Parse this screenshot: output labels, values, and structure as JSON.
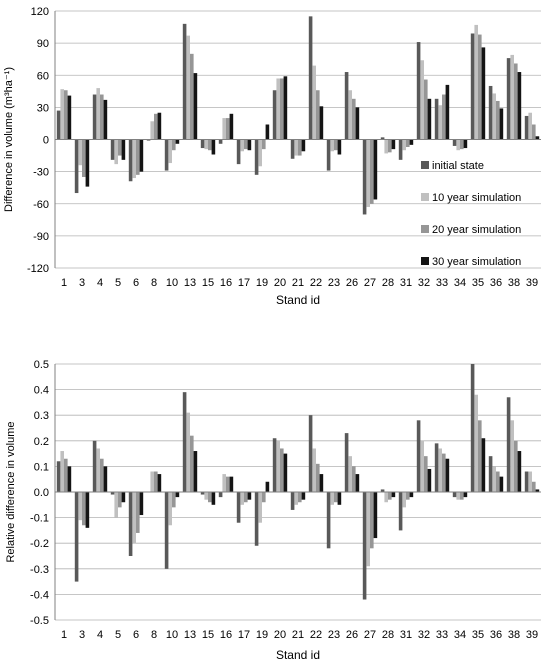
{
  "colors": {
    "series": [
      "#595959",
      "#c0c0c0",
      "#969696",
      "#141414"
    ],
    "grid": "#b3b3b3",
    "axis": "#808080"
  },
  "chart_data": [
    {
      "type": "bar",
      "xlabel": "Stand id",
      "ylabel": "Difference in volume (m³ha⁻¹)",
      "ylim": [
        -120,
        120
      ],
      "yticks": [
        -120,
        -90,
        -60,
        -30,
        0,
        30,
        60,
        90,
        120
      ],
      "grid": true,
      "legend_position": "right",
      "categories": [
        "1",
        "3",
        "4",
        "5",
        "6",
        "8",
        "10",
        "13",
        "15",
        "16",
        "17",
        "19",
        "20",
        "21",
        "22",
        "23",
        "26",
        "27",
        "28",
        "31",
        "32",
        "33",
        "34",
        "35",
        "36",
        "38",
        "39"
      ],
      "series": [
        {
          "name": "initial state",
          "values": [
            27,
            -50,
            42,
            -19,
            -39,
            -1,
            -29,
            108,
            -8,
            -4,
            -23,
            -33,
            46,
            -18,
            115,
            -29,
            63,
            -70,
            2,
            -19,
            91,
            38,
            -6,
            99,
            50,
            76,
            22
          ]
        },
        {
          "name": "10 year simulation",
          "values": [
            47,
            -24,
            48,
            -23,
            -36,
            17,
            -22,
            97,
            -9,
            20,
            -11,
            -25,
            57,
            -15,
            69,
            -11,
            46,
            -63,
            -13,
            -10,
            74,
            32,
            -10,
            107,
            43,
            79,
            25
          ]
        },
        {
          "name": "20 year simulation",
          "values": [
            46,
            -35,
            42,
            -15,
            -33,
            24,
            -10,
            80,
            -10,
            20,
            -9,
            -9,
            57,
            -15,
            46,
            -10,
            38,
            -60,
            -12,
            -7,
            56,
            42,
            -9,
            98,
            36,
            71,
            14
          ]
        },
        {
          "name": "30 year simulation",
          "values": [
            41,
            -44,
            37,
            -19,
            -30,
            25,
            -4,
            62,
            -14,
            24,
            -10,
            14,
            59,
            -11,
            31,
            -14,
            30,
            -56,
            -9,
            -5,
            38,
            51,
            -8,
            86,
            29,
            63,
            3
          ]
        }
      ]
    },
    {
      "type": "bar",
      "xlabel": "Stand id",
      "ylabel": "Relative difference in volume",
      "ylim": [
        -0.5,
        0.5
      ],
      "yticks": [
        -0.5,
        -0.4,
        -0.3,
        -0.2,
        -0.1,
        0,
        0.1,
        0.2,
        0.3,
        0.4,
        0.5
      ],
      "grid": true,
      "categories": [
        "1",
        "3",
        "4",
        "5",
        "6",
        "8",
        "10",
        "13",
        "15",
        "16",
        "17",
        "19",
        "20",
        "21",
        "22",
        "23",
        "26",
        "27",
        "28",
        "31",
        "32",
        "33",
        "34",
        "35",
        "36",
        "38",
        "39"
      ],
      "series": [
        {
          "name": "initial state",
          "values": [
            0.12,
            -0.35,
            0.2,
            -0.01,
            -0.25,
            0,
            -0.3,
            0.39,
            -0.01,
            -0.02,
            -0.12,
            -0.21,
            0.21,
            -0.07,
            0.3,
            -0.22,
            0.23,
            -0.42,
            0.01,
            -0.15,
            0.28,
            0.19,
            -0.02,
            0.5,
            0.14,
            0.37,
            0.08
          ]
        },
        {
          "name": "10 year simulation",
          "values": [
            0.16,
            -0.11,
            0.17,
            -0.1,
            -0.2,
            0.08,
            -0.13,
            0.31,
            -0.03,
            0.07,
            -0.05,
            -0.12,
            0.2,
            -0.05,
            0.17,
            -0.05,
            0.14,
            -0.29,
            -0.04,
            -0.06,
            0.2,
            0.17,
            -0.03,
            0.38,
            0.1,
            0.28,
            0.08
          ]
        },
        {
          "name": "20 year simulation",
          "values": [
            0.13,
            -0.13,
            0.13,
            -0.06,
            -0.16,
            0.08,
            -0.06,
            0.22,
            -0.04,
            0.06,
            -0.04,
            -0.04,
            0.17,
            -0.04,
            0.11,
            -0.04,
            0.1,
            -0.22,
            -0.03,
            -0.03,
            0.14,
            0.15,
            -0.03,
            0.28,
            0.08,
            0.2,
            0.04
          ]
        },
        {
          "name": "30 year simulation",
          "values": [
            0.1,
            -0.14,
            0.1,
            -0.04,
            -0.09,
            0.07,
            -0.02,
            0.16,
            -0.05,
            0.06,
            -0.03,
            0.04,
            0.15,
            -0.03,
            0.07,
            -0.05,
            0.07,
            -0.18,
            -0.02,
            -0.02,
            0.09,
            0.13,
            -0.02,
            0.21,
            0.06,
            0.16,
            0.01
          ]
        }
      ]
    }
  ]
}
